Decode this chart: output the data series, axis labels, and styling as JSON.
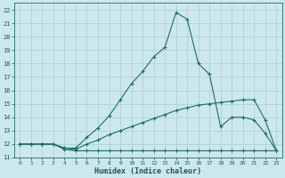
{
  "xlabel": "Humidex (Indice chaleur)",
  "background_color": "#cce8ec",
  "grid_color": "#aacdd4",
  "line_color": "#1a7060",
  "xlim": [
    -0.5,
    23.5
  ],
  "ylim": [
    11,
    22.5
  ],
  "xticks": [
    0,
    1,
    2,
    3,
    4,
    5,
    6,
    7,
    8,
    9,
    10,
    11,
    12,
    13,
    14,
    15,
    16,
    17,
    18,
    19,
    20,
    21,
    22,
    23
  ],
  "yticks": [
    11,
    12,
    13,
    14,
    15,
    16,
    17,
    18,
    19,
    20,
    21,
    22
  ],
  "line1_x": [
    0,
    1,
    2,
    3,
    4,
    5,
    6,
    7,
    8,
    9,
    10,
    11,
    12,
    13,
    14,
    15,
    16,
    17,
    18,
    19,
    20,
    21,
    22,
    23
  ],
  "line1_y": [
    12,
    12,
    12,
    12,
    11.6,
    11.5,
    11.5,
    11.5,
    11.5,
    11.5,
    11.5,
    11.5,
    11.5,
    11.5,
    11.5,
    11.5,
    11.5,
    11.5,
    11.5,
    11.5,
    11.5,
    11.5,
    11.5,
    11.5
  ],
  "line2_x": [
    0,
    1,
    2,
    3,
    4,
    5,
    6,
    7,
    8,
    9,
    10,
    11,
    12,
    13,
    14,
    15,
    16,
    17,
    18,
    19,
    20,
    21,
    22,
    23
  ],
  "line2_y": [
    12,
    12,
    12,
    12,
    11.7,
    11.6,
    12.0,
    12.3,
    12.7,
    13.0,
    13.3,
    13.6,
    13.9,
    14.2,
    14.5,
    14.7,
    14.9,
    15.0,
    15.1,
    15.2,
    15.3,
    15.3,
    13.8,
    11.5
  ],
  "line3_x": [
    0,
    1,
    2,
    3,
    4,
    5,
    6,
    7,
    8,
    9,
    10,
    11,
    12,
    13,
    14,
    15,
    16,
    17,
    18,
    19,
    20,
    21,
    22,
    23
  ],
  "line3_y": [
    12,
    12,
    12,
    12,
    11.7,
    11.7,
    12.5,
    13.2,
    14.1,
    15.3,
    16.5,
    17.4,
    18.5,
    19.2,
    21.8,
    21.3,
    18.0,
    17.2,
    13.3,
    14.0,
    14.0,
    13.8,
    12.8,
    11.5
  ]
}
